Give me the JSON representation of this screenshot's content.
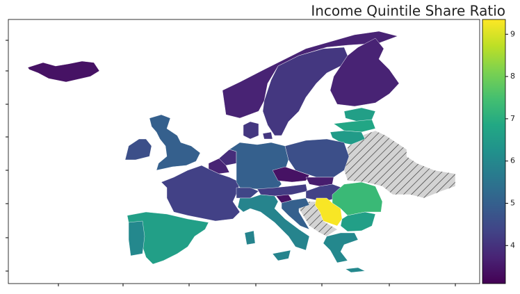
{
  "chart_data": {
    "type": "choropleth",
    "title": "Income Quintile Share Ratio",
    "values": [
      3.4,
      3.7,
      4.1,
      3.7,
      6.6,
      6.8,
      6.5,
      5.0,
      4.6,
      4.1,
      3.9,
      3.7,
      4.3,
      5.0,
      4.6,
      3.4,
      3.6,
      4.2,
      4.3,
      4.4,
      5.9,
      3.4,
      5.0,
      9.3,
      7.3,
      6.6,
      6.0,
      6.6,
      6.0
    ],
    "colormap": "viridis",
    "color_lim": [
      3.1,
      9.35
    ],
    "color_ticks": [
      4,
      5,
      6,
      7,
      8,
      9
    ],
    "missing_hatch": true
  }
}
